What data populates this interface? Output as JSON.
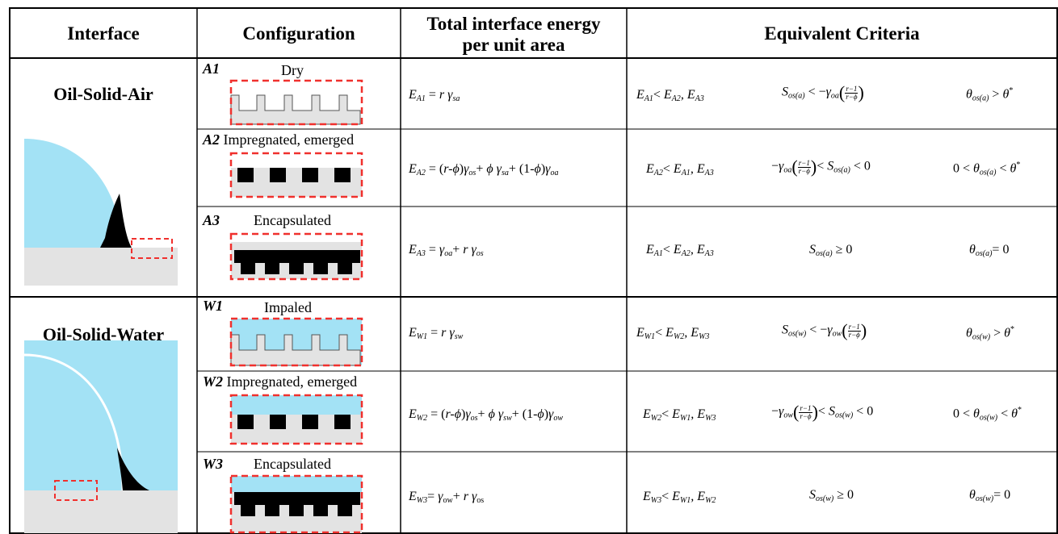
{
  "headers": {
    "interface": "Interface",
    "configuration": "Configuration",
    "energy_line1": "Total interface energy",
    "energy_line2": "per unit area",
    "criteria": "Equivalent Criteria"
  },
  "groups": [
    {
      "name": "Oil-Solid-Air"
    },
    {
      "name": "Oil-Solid-Water"
    }
  ],
  "rows": [
    {
      "id": "A1",
      "state": "Dry",
      "energy": {
        "E": "E",
        "sub": "A1",
        "rhs": "r γ",
        "rhs_sub": "sa"
      },
      "crit1": {
        "E": "E",
        "sub": "A1",
        "others": "E",
        "o1": "A2",
        "o2": "A3"
      },
      "spread": "S",
      "spread_sub": "os(a)",
      "theta": "θ",
      "theta_sub": "os(a)"
    },
    {
      "id": "A2",
      "state": "Impregnated, emerged",
      "energy": {
        "E": "E",
        "sub": "A2"
      },
      "crit1": {
        "E": "E",
        "sub": "A2",
        "o1": "A1",
        "o2": "A3"
      }
    },
    {
      "id": "A3",
      "state": "Encapsulated",
      "energy": {
        "E": "E",
        "sub": "A3"
      },
      "crit1": {
        "E": "E",
        "sub": "A1",
        "o1": "A2",
        "o2": "A3"
      }
    },
    {
      "id": "W1",
      "state": "Impaled",
      "energy": {
        "E": "E",
        "sub": "W1"
      },
      "crit1": {
        "E": "E",
        "sub": "W1",
        "o1": "W2",
        "o2": "W3"
      }
    },
    {
      "id": "W2",
      "state": "Impregnated, emerged",
      "energy": {
        "E": "E",
        "sub": "W2"
      },
      "crit1": {
        "E": "E",
        "sub": "W2",
        "o1": "W1",
        "o2": "W3"
      }
    },
    {
      "id": "W3",
      "state": "Encapsulated",
      "energy": {
        "E": "E",
        "sub": "W3"
      },
      "crit1": {
        "E": "E",
        "sub": "W3",
        "o1": "W1",
        "o2": "W2"
      }
    }
  ],
  "colors": {
    "oil": "#000000",
    "water": "#a3e2f5",
    "air_drop": "#a3e2f5",
    "solid": "#e3e3e3",
    "dash": "#f0302d",
    "border": "#000000"
  }
}
